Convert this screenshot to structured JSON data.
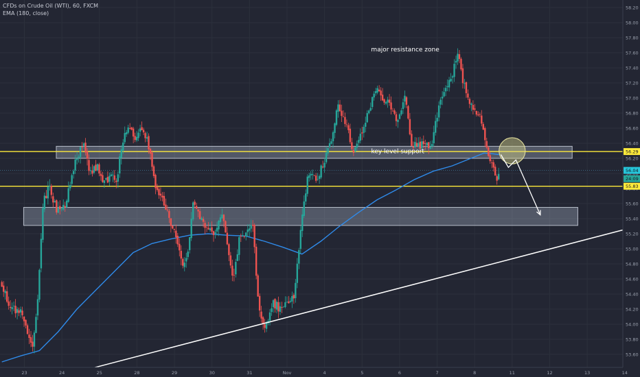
{
  "legend": {
    "symbol": "CFDs on Crude Oil (WTI), 60, FXCM",
    "ema": "EMA (180, close)"
  },
  "colors": {
    "background": "#232633",
    "bull": "#26a69a",
    "bear": "#ef5350",
    "ema": "#2f8bea",
    "level": "#ffeb3b",
    "zone_fill": "#b8c4d8",
    "trendline": "#ffffff",
    "axis_text": "#9aa0ad"
  },
  "chart_data": {
    "type": "candlestick",
    "title": "CFDs on Crude Oil (WTI), 60, FXCM",
    "indicator": "EMA (180, close)",
    "ylim": [
      53.3,
      58.3
    ],
    "y_ticks": [
      53.4,
      53.6,
      53.8,
      54.0,
      54.2,
      54.4,
      54.6,
      54.8,
      55.0,
      55.2,
      55.4,
      55.6,
      55.8,
      56.0,
      56.2,
      56.4,
      56.6,
      56.8,
      57.0,
      57.2,
      57.4,
      57.6,
      57.8,
      58.0,
      58.2
    ],
    "x_labels": [
      {
        "label": "23",
        "x": 0.6
      },
      {
        "label": "24",
        "x": 1.6
      },
      {
        "label": "25",
        "x": 2.6
      },
      {
        "label": "28",
        "x": 3.6
      },
      {
        "label": "29",
        "x": 4.6
      },
      {
        "label": "30",
        "x": 5.6
      },
      {
        "label": "31",
        "x": 6.6
      },
      {
        "label": "Nov",
        "x": 7.6
      },
      {
        "label": "4",
        "x": 8.6
      },
      {
        "label": "5",
        "x": 9.6
      },
      {
        "label": "6",
        "x": 10.6
      },
      {
        "label": "7",
        "x": 11.6
      },
      {
        "label": "8",
        "x": 12.6
      },
      {
        "label": "11",
        "x": 13.6
      },
      {
        "label": "12",
        "x": 14.6
      },
      {
        "label": "13",
        "x": 15.6
      },
      {
        "label": "14",
        "x": 16.6
      }
    ],
    "x_range": [
      -0.05,
      16.55
    ],
    "price_path": [
      [
        0.0,
        54.55
      ],
      [
        0.3,
        54.2
      ],
      [
        0.6,
        54.15
      ],
      [
        0.85,
        53.7
      ],
      [
        1.0,
        54.3
      ],
      [
        1.15,
        55.6
      ],
      [
        1.3,
        55.85
      ],
      [
        1.5,
        55.5
      ],
      [
        1.7,
        55.55
      ],
      [
        1.85,
        55.8
      ],
      [
        2.0,
        56.15
      ],
      [
        2.2,
        56.4
      ],
      [
        2.4,
        56.0
      ],
      [
        2.6,
        56.1
      ],
      [
        2.75,
        55.85
      ],
      [
        2.95,
        56.0
      ],
      [
        3.1,
        55.9
      ],
      [
        3.25,
        56.4
      ],
      [
        3.4,
        56.65
      ],
      [
        3.6,
        56.5
      ],
      [
        3.8,
        56.6
      ],
      [
        4.0,
        56.3
      ],
      [
        4.15,
        55.75
      ],
      [
        4.3,
        55.7
      ],
      [
        4.5,
        55.4
      ],
      [
        4.7,
        55.15
      ],
      [
        4.85,
        54.8
      ],
      [
        5.0,
        54.9
      ],
      [
        5.15,
        55.7
      ],
      [
        5.3,
        55.45
      ],
      [
        5.5,
        55.3
      ],
      [
        5.7,
        55.2
      ],
      [
        5.9,
        55.5
      ],
      [
        6.0,
        55.2
      ],
      [
        6.2,
        54.6
      ],
      [
        6.4,
        55.2
      ],
      [
        6.55,
        55.2
      ],
      [
        6.75,
        55.3
      ],
      [
        6.85,
        54.4
      ],
      [
        7.05,
        53.9
      ],
      [
        7.25,
        54.3
      ],
      [
        7.45,
        54.2
      ],
      [
        7.65,
        54.25
      ],
      [
        7.85,
        54.4
      ],
      [
        8.0,
        55.2
      ],
      [
        8.2,
        56.0
      ],
      [
        8.4,
        55.9
      ],
      [
        8.6,
        56.1
      ],
      [
        8.8,
        56.4
      ],
      [
        9.0,
        56.9
      ],
      [
        9.2,
        56.7
      ],
      [
        9.4,
        56.3
      ],
      [
        9.6,
        56.5
      ],
      [
        9.8,
        56.8
      ],
      [
        10.0,
        57.1
      ],
      [
        10.2,
        57.0
      ],
      [
        10.4,
        56.9
      ],
      [
        10.6,
        56.7
      ],
      [
        10.8,
        57.1
      ],
      [
        10.95,
        56.4
      ],
      [
        11.1,
        56.35
      ],
      [
        11.3,
        56.4
      ],
      [
        11.5,
        56.35
      ],
      [
        11.65,
        56.8
      ],
      [
        11.85,
        57.1
      ],
      [
        12.05,
        57.3
      ],
      [
        12.2,
        57.6
      ],
      [
        12.35,
        57.2
      ],
      [
        12.55,
        56.9
      ],
      [
        12.75,
        56.8
      ],
      [
        12.95,
        56.4
      ],
      [
        13.1,
        56.1
      ],
      [
        13.25,
        55.95
      ]
    ],
    "ema": [
      [
        0.0,
        53.5
      ],
      [
        0.5,
        53.58
      ],
      [
        1.0,
        53.65
      ],
      [
        1.5,
        53.9
      ],
      [
        2.0,
        54.2
      ],
      [
        2.5,
        54.45
      ],
      [
        3.0,
        54.7
      ],
      [
        3.5,
        54.95
      ],
      [
        4.0,
        55.07
      ],
      [
        4.5,
        55.13
      ],
      [
        5.0,
        55.18
      ],
      [
        5.5,
        55.2
      ],
      [
        6.0,
        55.18
      ],
      [
        6.5,
        55.17
      ],
      [
        7.0,
        55.1
      ],
      [
        7.5,
        55.02
      ],
      [
        8.0,
        54.93
      ],
      [
        8.5,
        55.1
      ],
      [
        9.0,
        55.3
      ],
      [
        9.5,
        55.48
      ],
      [
        10.0,
        55.65
      ],
      [
        10.5,
        55.78
      ],
      [
        11.0,
        55.92
      ],
      [
        11.5,
        56.03
      ],
      [
        12.0,
        56.1
      ],
      [
        12.5,
        56.2
      ],
      [
        12.85,
        56.27
      ],
      [
        13.1,
        56.26
      ],
      [
        13.25,
        56.25
      ]
    ],
    "horizontal_levels": [
      {
        "price": 56.29,
        "label": "56.29"
      },
      {
        "price": 55.83,
        "label": "55.83"
      }
    ],
    "zones": [
      {
        "x0": 1.45,
        "x1": 15.2,
        "y0": 56.2,
        "y1": 56.36,
        "label": "key level support"
      },
      {
        "x0": 0.58,
        "x1": 15.35,
        "y0": 55.31,
        "y1": 55.55
      }
    ],
    "price_markers": [
      {
        "price": 56.04,
        "label": "56.04",
        "kind": "last_price"
      },
      {
        "price": 55.93,
        "label": "24:09",
        "kind": "countdown"
      }
    ],
    "trendline": {
      "from": [
        1.5,
        53.3
      ],
      "to": [
        16.55,
        55.25
      ]
    },
    "annotations": [
      {
        "text": "major resistance zone",
        "x": 10.75,
        "y": 57.62
      },
      {
        "text": "key level support",
        "x": 10.55,
        "y": 56.27
      }
    ],
    "projection_path": [
      [
        13.3,
        56.25
      ],
      [
        13.5,
        56.08
      ],
      [
        13.7,
        56.18
      ],
      [
        14.35,
        55.45
      ]
    ],
    "highlight_circle": {
      "x": 13.6,
      "y": 56.3,
      "r_days": 0.35
    }
  }
}
